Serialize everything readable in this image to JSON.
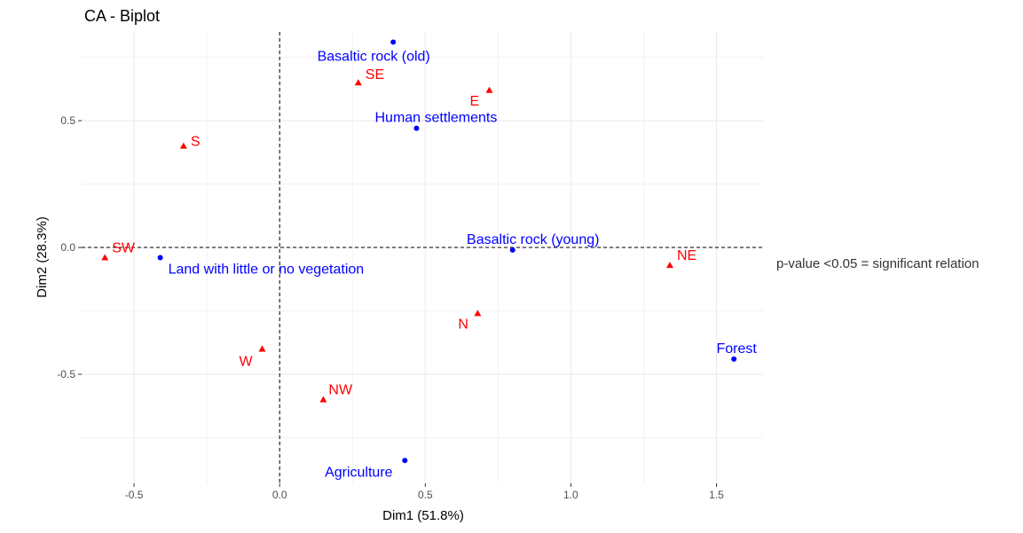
{
  "chart_data": {
    "type": "scatter",
    "title": "CA - Biplot",
    "xlabel": "Dim1 (51.8%)",
    "ylabel": "Dim2 (28.3%)",
    "xlim": [
      -0.68,
      1.66
    ],
    "ylim": [
      -0.93,
      0.85
    ],
    "xticks": [
      -0.5,
      0.0,
      0.5,
      1.0,
      1.5
    ],
    "xtick_labels": [
      "-0.5",
      "0.0",
      "0.5",
      "1.0",
      "1.5"
    ],
    "yticks": [
      -0.5,
      0.0,
      0.5
    ],
    "ytick_labels": [
      "-0.5",
      "0.0",
      "0.5"
    ],
    "grid": true,
    "reference_lines": {
      "x": 0,
      "y": 0
    },
    "annotation": "p-value <0.05 = significant relation",
    "series": [
      {
        "color": "#0000ff",
        "marker": "circle",
        "points": [
          {
            "label": "Basaltic rock (old)",
            "x": 0.39,
            "y": 0.81
          },
          {
            "label": "Human settlements",
            "x": 0.47,
            "y": 0.47
          },
          {
            "label": "Basaltic rock (young)",
            "x": 0.8,
            "y": -0.01
          },
          {
            "label": "Land with little or no vegetation",
            "x": -0.41,
            "y": -0.04
          },
          {
            "label": "Forest",
            "x": 1.56,
            "y": -0.44
          },
          {
            "label": "Agriculture",
            "x": 0.43,
            "y": -0.84
          }
        ]
      },
      {
        "color": "#ff0000",
        "marker": "triangle",
        "points": [
          {
            "label": "SE",
            "x": 0.27,
            "y": 0.65
          },
          {
            "label": "E",
            "x": 0.72,
            "y": 0.62
          },
          {
            "label": "S",
            "x": -0.33,
            "y": 0.4
          },
          {
            "label": "SW",
            "x": -0.6,
            "y": -0.04
          },
          {
            "label": "NE",
            "x": 1.34,
            "y": -0.07
          },
          {
            "label": "N",
            "x": 0.68,
            "y": -0.26
          },
          {
            "label": "W",
            "x": -0.06,
            "y": -0.4
          },
          {
            "label": "NW",
            "x": 0.15,
            "y": -0.6
          }
        ]
      }
    ]
  }
}
